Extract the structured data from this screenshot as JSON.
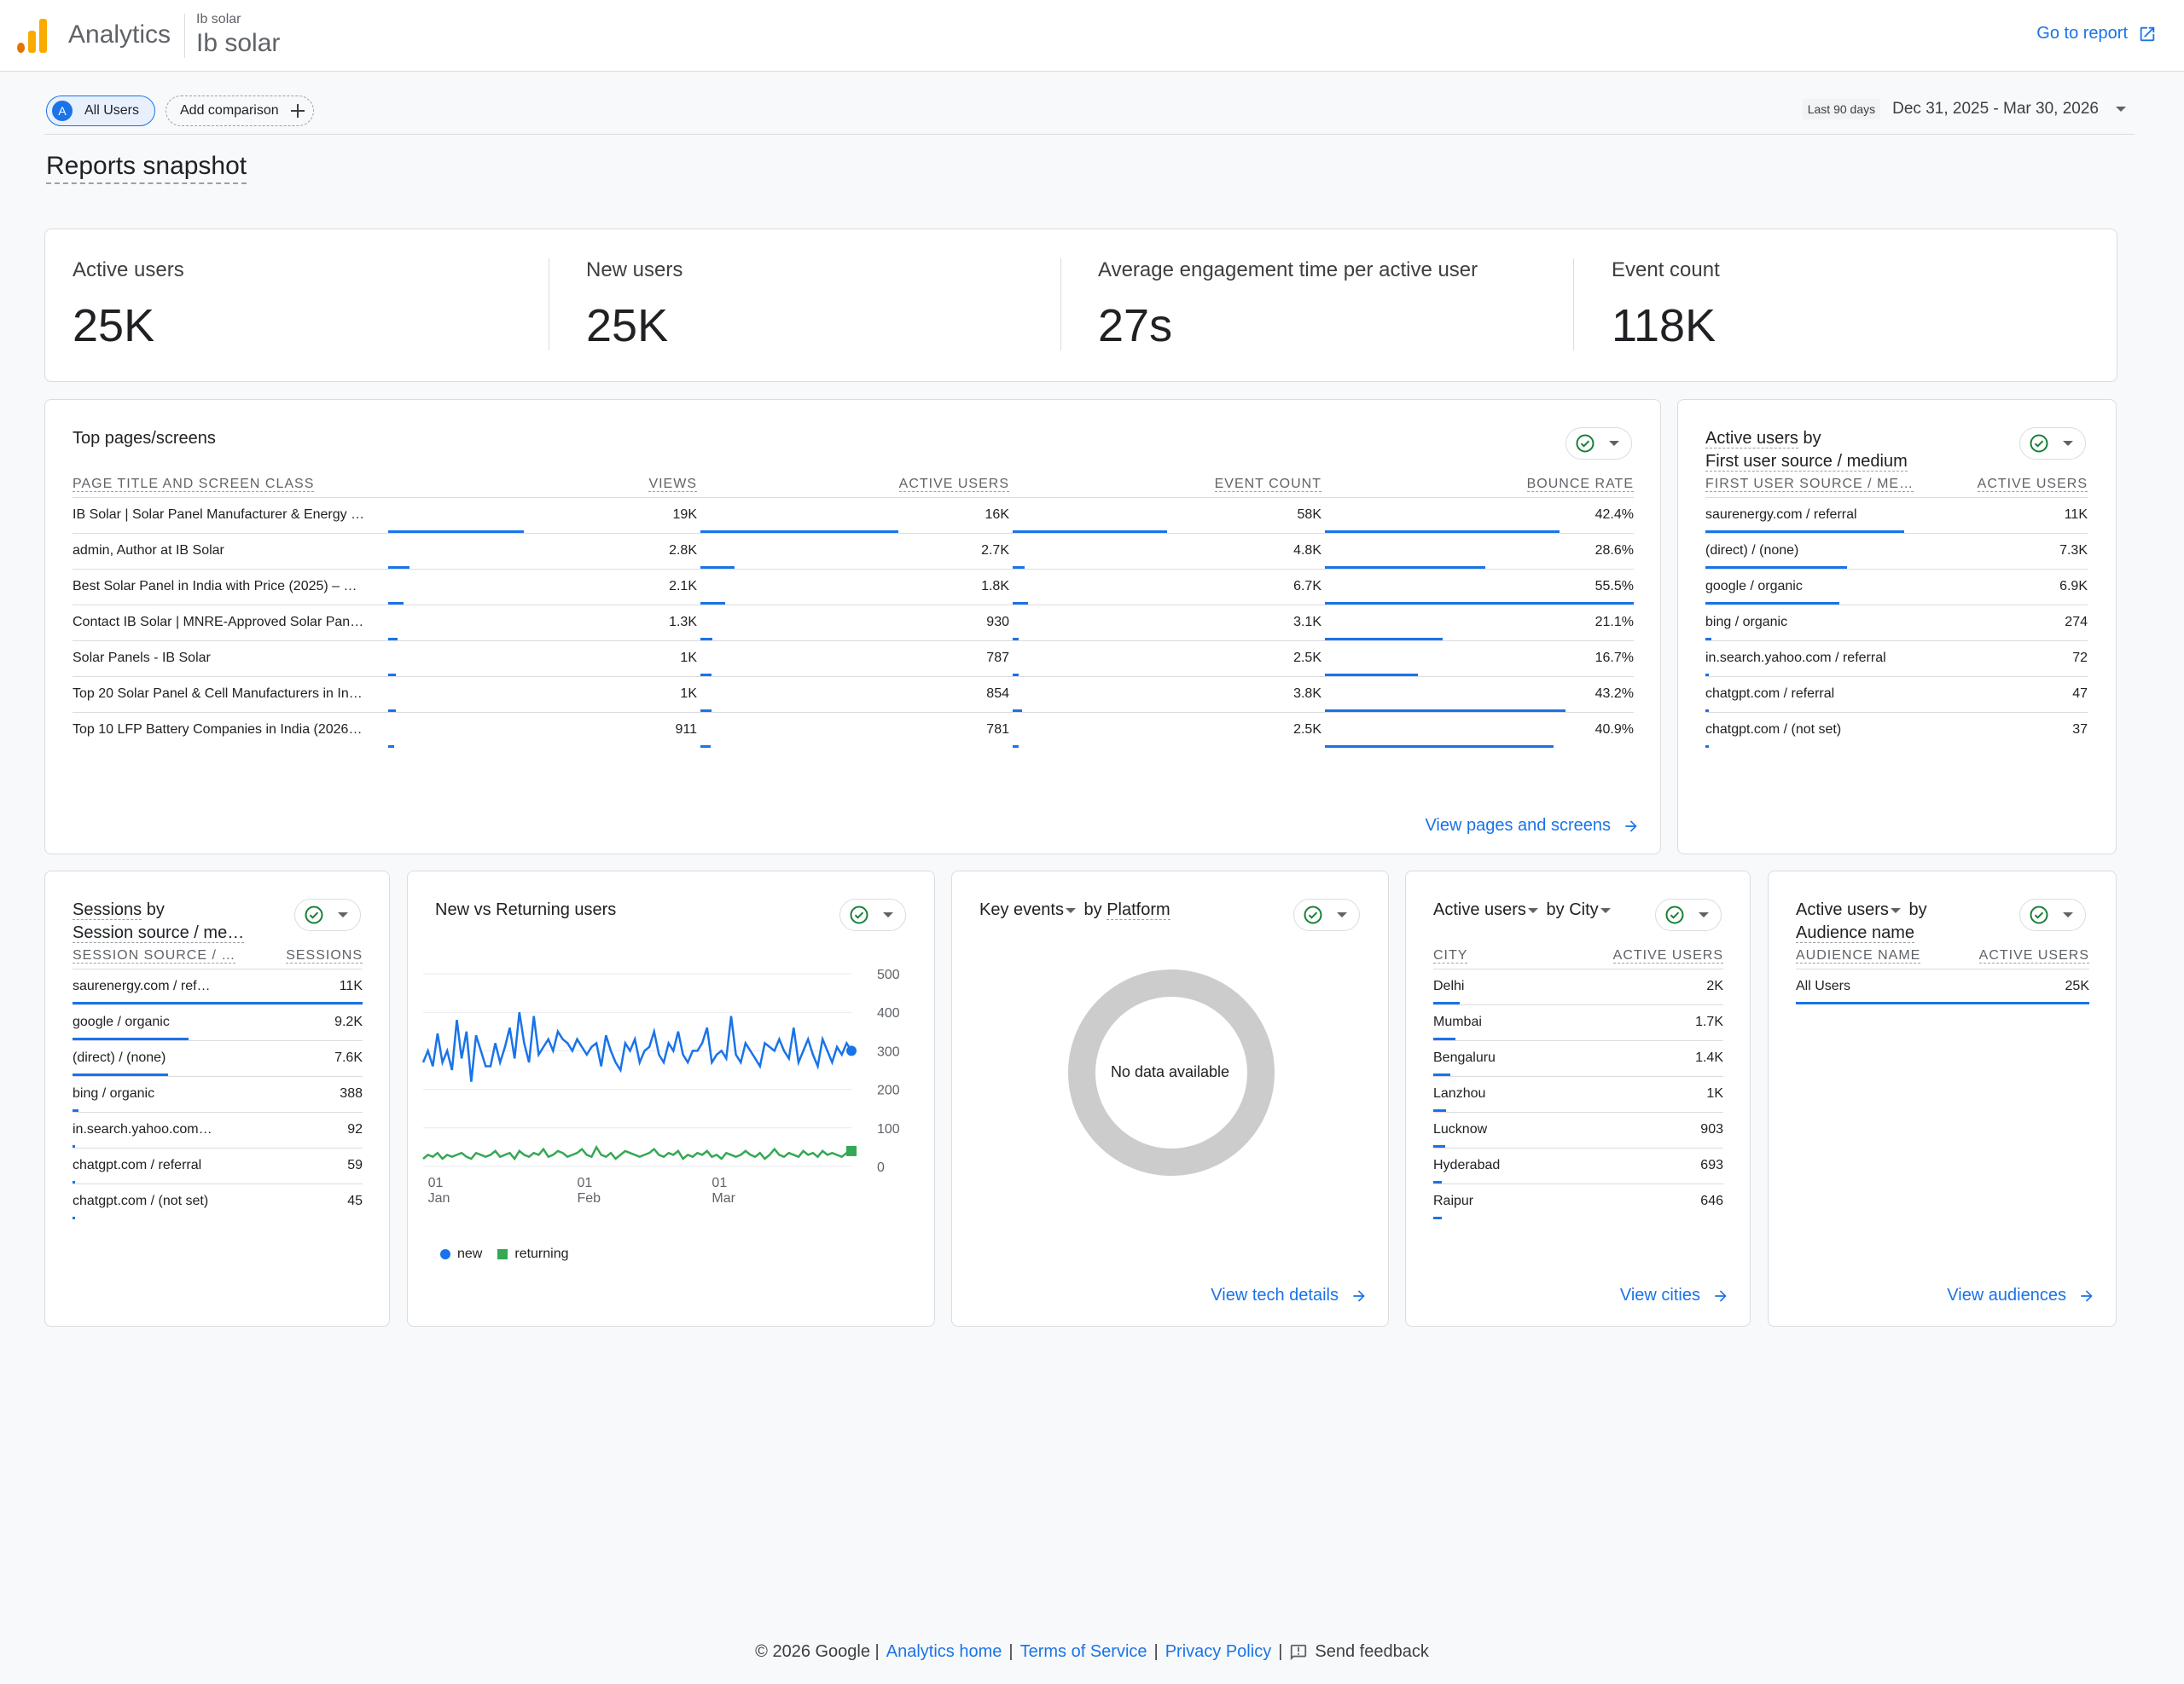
{
  "header": {
    "brand": "Analytics",
    "account_small": "Ib solar",
    "account_big": "Ib solar",
    "go_to_report": "Go to report"
  },
  "comparison": {
    "segment_letter": "A",
    "segment_label": "All Users",
    "add_comparison": "Add comparison",
    "date_label": "Last 90 days",
    "date_value": "Dec 31, 2025 - Mar 30, 2026"
  },
  "page_title": "Reports snapshot",
  "kpis": [
    {
      "label": "Active users",
      "value": "25K"
    },
    {
      "label": "New users",
      "value": "25K"
    },
    {
      "label": "Average engagement time per active user",
      "value": "27s"
    },
    {
      "label": "Event count",
      "value": "118K"
    }
  ],
  "top_pages": {
    "title": "Top pages/screens",
    "columns": [
      "PAGE TITLE AND SCREEN CLASS",
      "VIEWS",
      "ACTIVE USERS",
      "EVENT COUNT",
      "BOUNCE RATE"
    ],
    "rows": [
      {
        "page": "IB Solar | Solar Panel Manufacturer & Energy …",
        "views": "19K",
        "active": "16K",
        "events": "58K",
        "bounce": "42.4%",
        "bars": [
          0.44,
          0.64,
          0.5,
          0.76
        ]
      },
      {
        "page": "admin, Author at IB Solar",
        "views": "2.8K",
        "active": "2.7K",
        "events": "4.8K",
        "bounce": "28.6%",
        "bars": [
          0.07,
          0.11,
          0.04,
          0.52
        ]
      },
      {
        "page": "Best Solar Panel in India with Price (2025) – …",
        "views": "2.1K",
        "active": "1.8K",
        "events": "6.7K",
        "bounce": "55.5%",
        "bars": [
          0.05,
          0.08,
          0.05,
          1.0
        ]
      },
      {
        "page": "Contact IB Solar | MNRE-Approved Solar Pan…",
        "views": "1.3K",
        "active": "930",
        "events": "3.1K",
        "bounce": "21.1%",
        "bars": [
          0.03,
          0.04,
          0.02,
          0.38
        ]
      },
      {
        "page": "Solar Panels - IB Solar",
        "views": "1K",
        "active": "787",
        "events": "2.5K",
        "bounce": "16.7%",
        "bars": [
          0.025,
          0.035,
          0.02,
          0.3
        ]
      },
      {
        "page": "Top 20 Solar Panel & Cell Manufacturers in In…",
        "views": "1K",
        "active": "854",
        "events": "3.8K",
        "bounce": "43.2%",
        "bars": [
          0.025,
          0.037,
          0.03,
          0.78
        ]
      },
      {
        "page": "Top 10 LFP Battery Companies in India (2026…",
        "views": "911",
        "active": "781",
        "events": "2.5K",
        "bounce": "40.9%",
        "bars": [
          0.02,
          0.034,
          0.02,
          0.74
        ]
      }
    ],
    "link": "View pages and screens"
  },
  "first_source": {
    "title_a": "Active users",
    "title_b": "by",
    "title_c": "First user source / medium",
    "columns": [
      "FIRST USER SOURCE / ME…",
      "ACTIVE USERS"
    ],
    "rows": [
      {
        "label": "saurenergy.com / referral",
        "value": "11K",
        "bar": 0.52
      },
      {
        "label": "(direct) / (none)",
        "value": "7.3K",
        "bar": 0.37
      },
      {
        "label": "google / organic",
        "value": "6.9K",
        "bar": 0.35
      },
      {
        "label": "bing / organic",
        "value": "274",
        "bar": 0.015
      },
      {
        "label": "in.search.yahoo.com / referral",
        "value": "72",
        "bar": 0.005
      },
      {
        "label": "chatgpt.com / referral",
        "value": "47",
        "bar": 0.004
      },
      {
        "label": "chatgpt.com / (not set)",
        "value": "37",
        "bar": 0.003
      }
    ]
  },
  "sessions": {
    "title_a": "Sessions",
    "title_b": "by",
    "title_c": "Session source / me…",
    "columns": [
      "SESSION SOURCE / …",
      "SESSIONS"
    ],
    "rows": [
      {
        "label": "saurenergy.com / ref…",
        "value": "11K",
        "bar": 1.0
      },
      {
        "label": "google / organic",
        "value": "9.2K",
        "bar": 0.4
      },
      {
        "label": "(direct) / (none)",
        "value": "7.6K",
        "bar": 0.33
      },
      {
        "label": "bing / organic",
        "value": "388",
        "bar": 0.02
      },
      {
        "label": "in.search.yahoo.com…",
        "value": "92",
        "bar": 0.008
      },
      {
        "label": "chatgpt.com / referral",
        "value": "59",
        "bar": 0.006
      },
      {
        "label": "chatgpt.com / (not set)",
        "value": "45",
        "bar": 0.005
      }
    ]
  },
  "new_vs_returning": {
    "title": "New vs Returning users",
    "legend_new": "new",
    "legend_returning": "returning",
    "colors": {
      "new": "#1a73e8",
      "returning": "#34a853"
    }
  },
  "chart_data": {
    "type": "line",
    "x_ticks": [
      {
        "day": "01",
        "month": "Jan"
      },
      {
        "day": "01",
        "month": "Feb"
      },
      {
        "day": "01",
        "month": "Mar"
      }
    ],
    "y_ticks": [
      500,
      400,
      300,
      200,
      100,
      0
    ],
    "ylim": [
      0,
      500
    ],
    "x_start": "2025-12-31",
    "x_end": "2026-03-30",
    "grid": true,
    "series": [
      {
        "name": "new",
        "values": [
          270,
          300,
          260,
          345,
          270,
          300,
          250,
          380,
          280,
          350,
          220,
          340,
          300,
          260,
          260,
          320,
          270,
          310,
          360,
          280,
          400,
          320,
          270,
          390,
          290,
          310,
          330,
          300,
          350,
          330,
          320,
          300,
          330,
          310,
          290,
          310,
          320,
          260,
          340,
          300,
          270,
          250,
          320,
          300,
          330,
          270,
          300,
          310,
          350,
          290,
          270,
          320,
          300,
          350,
          290,
          270,
          300,
          300,
          320,
          360,
          270,
          290,
          300,
          280,
          390,
          290,
          270,
          320,
          300,
          280,
          260,
          320,
          310,
          300,
          330,
          300,
          280,
          360,
          270,
          300,
          330,
          290,
          260,
          330,
          300,
          270,
          310,
          290,
          320,
          300
        ]
      },
      {
        "name": "returning",
        "values": [
          20,
          30,
          25,
          35,
          20,
          30,
          25,
          30,
          35,
          25,
          20,
          35,
          30,
          25,
          30,
          40,
          25,
          30,
          35,
          20,
          40,
          30,
          25,
          35,
          30,
          45,
          25,
          30,
          40,
          35,
          25,
          30,
          35,
          45,
          30,
          25,
          50,
          30,
          25,
          35,
          20,
          30,
          40,
          35,
          30,
          25,
          30,
          35,
          45,
          30,
          25,
          35,
          30,
          40,
          20,
          30,
          25,
          35,
          30,
          40,
          25,
          30,
          20,
          35,
          30,
          25,
          30,
          40,
          30,
          25,
          35,
          20,
          30,
          45,
          30,
          25,
          35,
          30,
          25,
          40,
          30,
          35,
          25,
          40,
          30,
          35,
          30,
          25,
          35,
          40
        ]
      }
    ]
  },
  "key_events": {
    "title_a": "Key events",
    "title_b": "by",
    "title_c": "Platform",
    "no_data": "No data available",
    "link": "View tech details"
  },
  "city": {
    "title_a": "Active users",
    "title_b": "by",
    "title_c": "City",
    "columns": [
      "CITY",
      "ACTIVE USERS"
    ],
    "rows": [
      {
        "label": "Delhi",
        "value": "2K",
        "bar": 0.09
      },
      {
        "label": "Mumbai",
        "value": "1.7K",
        "bar": 0.075
      },
      {
        "label": "Bengaluru",
        "value": "1.4K",
        "bar": 0.06
      },
      {
        "label": "Lanzhou",
        "value": "1K",
        "bar": 0.045
      },
      {
        "label": "Lucknow",
        "value": "903",
        "bar": 0.04
      },
      {
        "label": "Hyderabad",
        "value": "693",
        "bar": 0.03
      },
      {
        "label": "Raipur",
        "value": "646",
        "bar": 0.028
      }
    ],
    "link": "View cities"
  },
  "audience": {
    "title_a": "Active users",
    "title_b": "by",
    "title_c": "Audience name",
    "columns": [
      "AUDIENCE NAME",
      "ACTIVE USERS"
    ],
    "rows": [
      {
        "label": "All Users",
        "value": "25K",
        "bar": 1.0
      }
    ],
    "link": "View audiences"
  },
  "footer": {
    "copyright": "© 2026 Google |",
    "analytics_home": "Analytics home",
    "sep1": "|",
    "terms": "Terms of Service",
    "sep2": "|",
    "privacy": "Privacy Policy",
    "sep3": "|",
    "feedback": "Send feedback"
  }
}
